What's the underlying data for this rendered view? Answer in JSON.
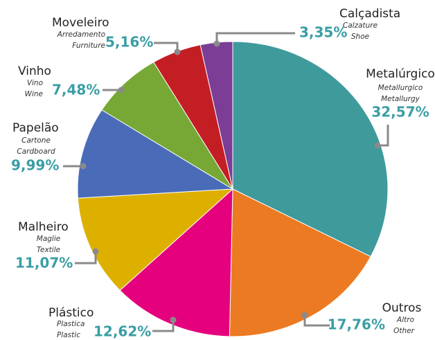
{
  "chart_data": {
    "type": "pie",
    "categories": [
      "Metalúrgico",
      "Outros",
      "Plástico",
      "Malheiro",
      "Papelão",
      "Vinho",
      "Moveleiro",
      "Calçadista"
    ],
    "subtitles": [
      [
        "Metallurgico",
        "Metallurgy"
      ],
      [
        "Altro",
        "Other"
      ],
      [
        "Plastica",
        "Plastic"
      ],
      [
        "Maglie",
        "Textile"
      ],
      [
        "Cartone",
        "Cardboard"
      ],
      [
        "Vino",
        "Wine"
      ],
      [
        "Arredamento",
        "Furniture"
      ],
      [
        "Calzature",
        "Shoe"
      ]
    ],
    "values": [
      32.57,
      17.76,
      12.62,
      11.07,
      9.99,
      7.48,
      5.16,
      3.35
    ],
    "value_labels": [
      "32,57%",
      "17,76%",
      "12,62%",
      "11,07%",
      "9,99%",
      "7,48%",
      "5,16%",
      "3,35%"
    ],
    "colors": [
      "#3f9a9c",
      "#ec7a22",
      "#e5007e",
      "#ddb000",
      "#4a6cb8",
      "#77a836",
      "#c41e25",
      "#7b3d96"
    ]
  }
}
